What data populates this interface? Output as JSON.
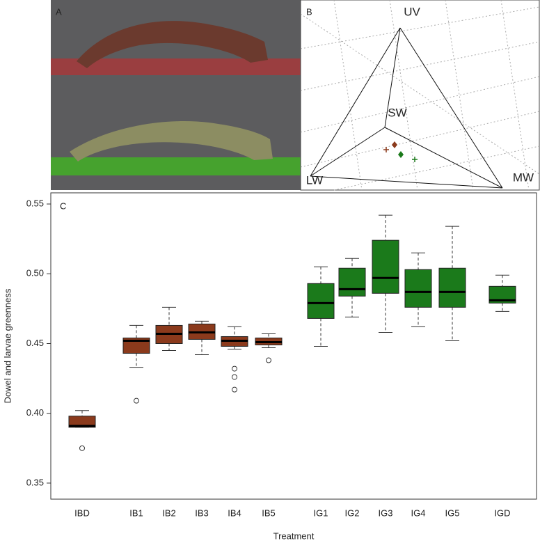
{
  "panels": {
    "A": {
      "label": "A"
    },
    "B": {
      "label": "B",
      "vertices": [
        "UV",
        "SW",
        "LW",
        "MW"
      ]
    }
  },
  "chart_data": {
    "type": "boxplot",
    "panel_label": "C",
    "xlabel": "Treatment",
    "ylabel": "Dowel and larvae greenness",
    "categories": [
      "IBD",
      "IB1",
      "IB2",
      "IB3",
      "IB4",
      "IB5",
      "IG1",
      "IG2",
      "IG3",
      "IG4",
      "IG5",
      "IGD"
    ],
    "colors": [
      "#8b3a1c",
      "#8b3a1c",
      "#8b3a1c",
      "#8b3a1c",
      "#8b3a1c",
      "#8b3a1c",
      "#1b7a1b",
      "#1b7a1b",
      "#1b7a1b",
      "#1b7a1b",
      "#1b7a1b",
      "#1b7a1b"
    ],
    "boxes": [
      {
        "min": 0.39,
        "q1": 0.39,
        "median": 0.391,
        "q3": 0.398,
        "max": 0.402,
        "outliers": [
          0.375
        ]
      },
      {
        "min": 0.433,
        "q1": 0.443,
        "median": 0.452,
        "q3": 0.454,
        "max": 0.463,
        "outliers": [
          0.409
        ]
      },
      {
        "min": 0.445,
        "q1": 0.45,
        "median": 0.457,
        "q3": 0.463,
        "max": 0.476,
        "outliers": []
      },
      {
        "min": 0.442,
        "q1": 0.453,
        "median": 0.458,
        "q3": 0.464,
        "max": 0.466,
        "outliers": []
      },
      {
        "min": 0.446,
        "q1": 0.448,
        "median": 0.452,
        "q3": 0.455,
        "max": 0.462,
        "outliers": [
          0.432,
          0.426,
          0.417
        ]
      },
      {
        "min": 0.447,
        "q1": 0.449,
        "median": 0.451,
        "q3": 0.454,
        "max": 0.457,
        "outliers": [
          0.438
        ]
      },
      {
        "min": 0.448,
        "q1": 0.468,
        "median": 0.479,
        "q3": 0.493,
        "max": 0.505,
        "outliers": []
      },
      {
        "min": 0.469,
        "q1": 0.484,
        "median": 0.489,
        "q3": 0.504,
        "max": 0.511,
        "outliers": []
      },
      {
        "min": 0.458,
        "q1": 0.486,
        "median": 0.497,
        "q3": 0.524,
        "max": 0.542,
        "outliers": []
      },
      {
        "min": 0.462,
        "q1": 0.476,
        "median": 0.487,
        "q3": 0.503,
        "max": 0.515,
        "outliers": []
      },
      {
        "min": 0.452,
        "q1": 0.476,
        "median": 0.487,
        "q3": 0.504,
        "max": 0.534,
        "outliers": []
      },
      {
        "min": 0.473,
        "q1": 0.479,
        "median": 0.481,
        "q3": 0.491,
        "max": 0.499,
        "outliers": []
      }
    ],
    "ylim": [
      0.3385,
      0.558
    ],
    "yticks": [
      0.35,
      {
        "value": 0.4,
        "label": "0.40"
      },
      0.45,
      {
        "value": 0.5,
        "label": "0.50"
      },
      0.55
    ]
  }
}
